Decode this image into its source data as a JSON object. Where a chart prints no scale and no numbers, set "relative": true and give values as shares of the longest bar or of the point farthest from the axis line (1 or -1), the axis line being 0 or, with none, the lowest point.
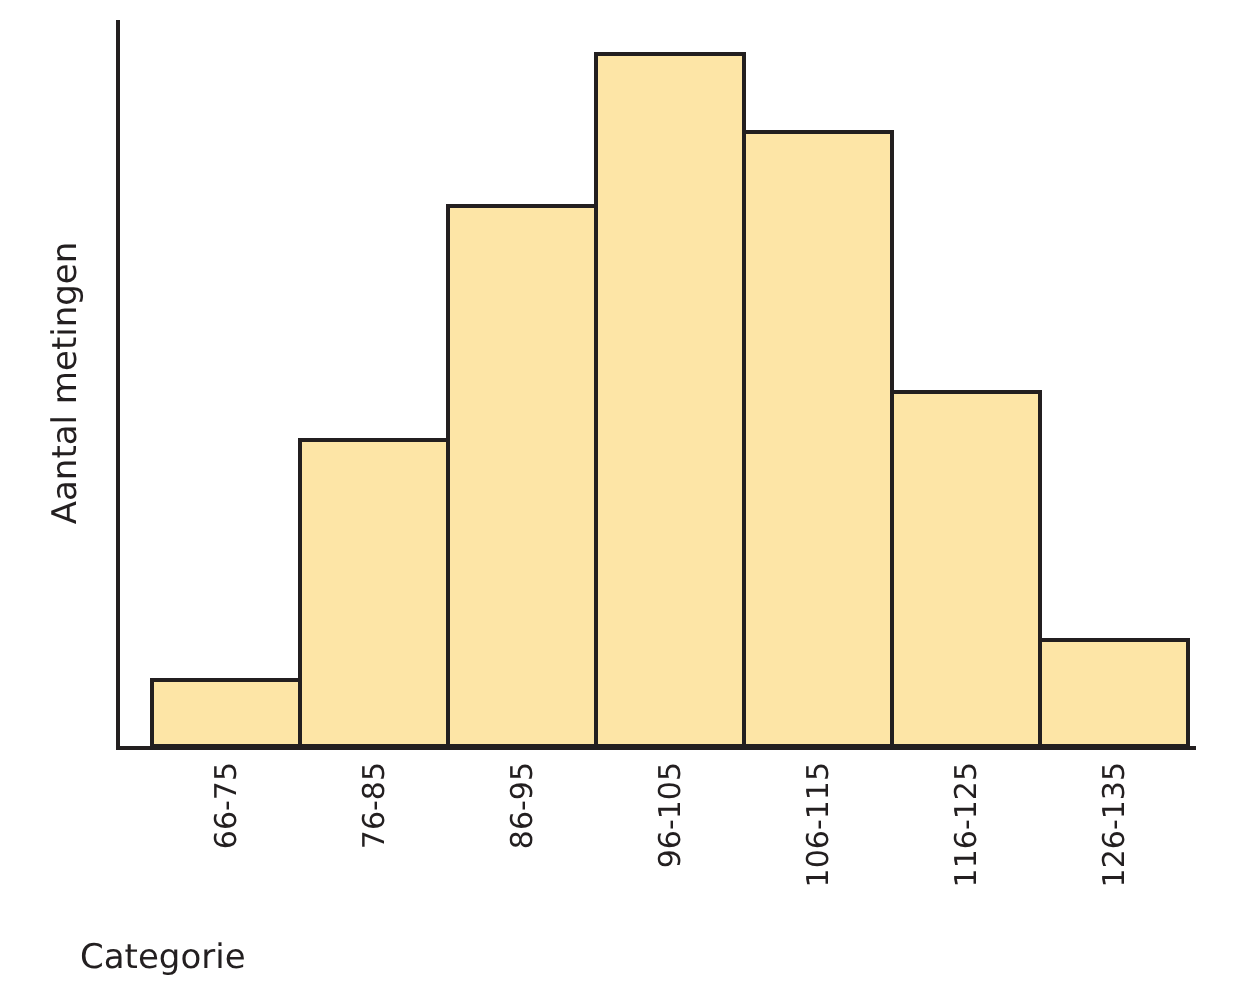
{
  "chart_data": {
    "type": "bar",
    "relative": true,
    "categories": [
      "66-75",
      "76-85",
      "86-95",
      "96-105",
      "106-115",
      "116-125",
      "126-135"
    ],
    "values": [
      0.096,
      0.442,
      0.782,
      1,
      0.887,
      0.513,
      0.152
    ],
    "color": "#fde5a6",
    "xlabel": "Categorie",
    "ylabel": "Aantal metingen"
  }
}
